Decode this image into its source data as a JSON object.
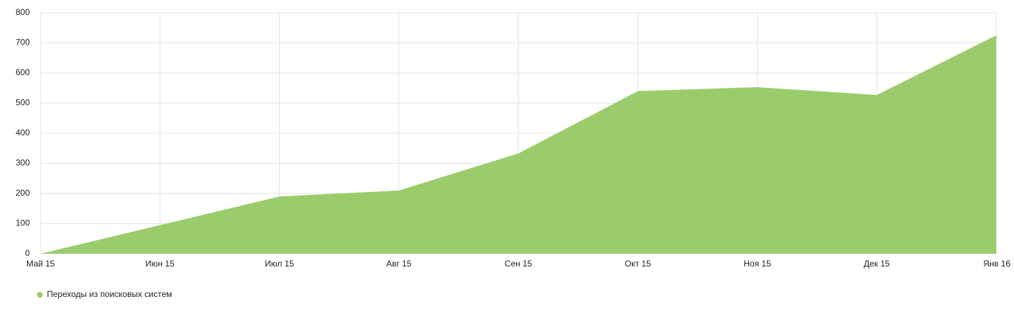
{
  "chart_data": {
    "type": "area",
    "categories": [
      "Май 15",
      "Июн 15",
      "Июл 15",
      "Авг 15",
      "Сен 15",
      "Окт 15",
      "Ноя 15",
      "Дек 15",
      "Янв 16"
    ],
    "series": [
      {
        "name": "Переходы из поисковых систем",
        "color": "#96c964",
        "values": [
          0,
          95,
          190,
          210,
          333,
          540,
          553,
          527,
          725
        ]
      }
    ],
    "ylim": [
      0,
      800
    ],
    "yticks": [
      0,
      100,
      200,
      300,
      400,
      500,
      600,
      700,
      800
    ],
    "grid": true,
    "legend": "bottom-left"
  }
}
